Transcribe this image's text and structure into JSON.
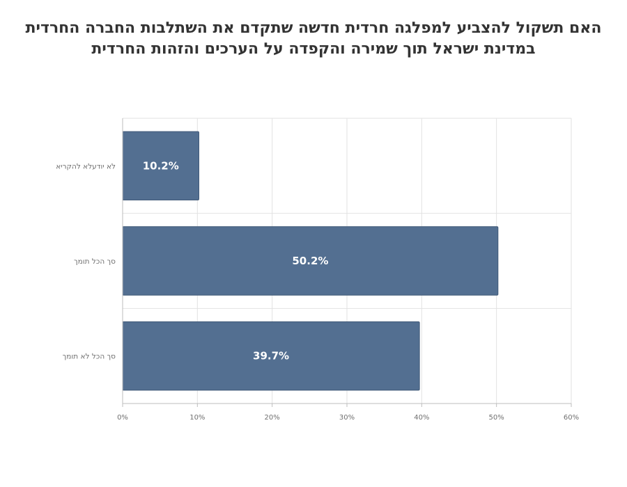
{
  "chart_data": {
    "type": "bar",
    "orientation": "horizontal",
    "title_lines": [
      "האם תשקול להצביע למפלגה חרדית חדשה שתקדם את השתלבות החברה החרדית",
      "במדינת ישראל תוך שמירה והקפדה על הערכים והזהות החרדית"
    ],
    "categories": [
      "לא יודעלא להקריא",
      "סך הכל תומך",
      "סך הכל לא תומך"
    ],
    "values": [
      10.2,
      50.2,
      39.7
    ],
    "value_labels": [
      "10.2%",
      "50.2%",
      "39.7%"
    ],
    "xlim": [
      0,
      60
    ],
    "x_ticks": [
      0,
      10,
      20,
      30,
      40,
      50,
      60
    ],
    "x_tick_labels": [
      "0%",
      "10%",
      "20%",
      "30%",
      "40%",
      "50%",
      "60%"
    ],
    "grid": true,
    "legend": "none",
    "bar_color": "#536f91",
    "bar_edge_color": "#3f5877"
  }
}
